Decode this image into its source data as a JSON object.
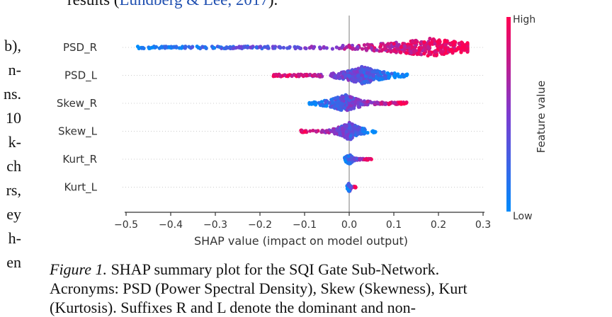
{
  "top_text": {
    "before": "results (",
    "cite": "Lundberg & Lee, 2017",
    "after": ")."
  },
  "left_column_fragments": [
    "b),",
    "n-",
    "ns.",
    "10",
    "k-",
    "ch",
    "rs,",
    "ey",
    "h-",
    "en"
  ],
  "chart_data": {
    "type": "scatter",
    "subtype": "shap-beeswarm",
    "features": [
      "PSD_R",
      "PSD_L",
      "Skew_R",
      "Skew_L",
      "Kurt_R",
      "Kurt_L"
    ],
    "xlabel": "SHAP value (impact on model output)",
    "xlim": [
      -0.52,
      0.3
    ],
    "xticks": [
      -0.5,
      -0.4,
      -0.3,
      -0.2,
      -0.1,
      0.0,
      0.1,
      0.2,
      0.3
    ],
    "xtick_labels": [
      "−0.5",
      "−0.4",
      "−0.3",
      "−0.2",
      "−0.1",
      "0.0",
      "0.1",
      "0.2",
      "0.3"
    ],
    "colorbar": {
      "label": "Feature value",
      "high": "High",
      "low": "Low"
    },
    "value_ranges": [
      {
        "feature": "PSD_R",
        "min": -0.48,
        "max": 0.265,
        "low_value_side": "negative",
        "dense_center": 0.18
      },
      {
        "feature": "PSD_L",
        "min": -0.17,
        "max": 0.13,
        "low_value_side": "positive",
        "dense_center": 0.03
      },
      {
        "feature": "Skew_R",
        "min": -0.09,
        "max": 0.13,
        "low_value_side": "negative",
        "dense_center": -0.01
      },
      {
        "feature": "Skew_L",
        "min": -0.11,
        "max": 0.06,
        "low_value_side": "positive",
        "dense_center": 0.0
      },
      {
        "feature": "Kurt_R",
        "min": -0.01,
        "max": 0.05,
        "low_value_side": "negative",
        "dense_center": 0.0
      },
      {
        "feature": "Kurt_L",
        "min": -0.005,
        "max": 0.015,
        "low_value_side": "negative",
        "dense_center": 0.0
      }
    ]
  },
  "colors": {
    "high": "#ff0052",
    "low": "#008bfb",
    "zero_line": "#999999",
    "row_line": "#cccccc"
  },
  "caption": {
    "label": "Figure 1.",
    "line1": " SHAP summary plot for the SQI Gate Sub-Network.",
    "line2": "Acronyms: PSD (Power Spectral Density), Skew (Skewness), Kurt",
    "line3": "(Kurtosis). Suffixes R and L denote the dominant and non-"
  }
}
